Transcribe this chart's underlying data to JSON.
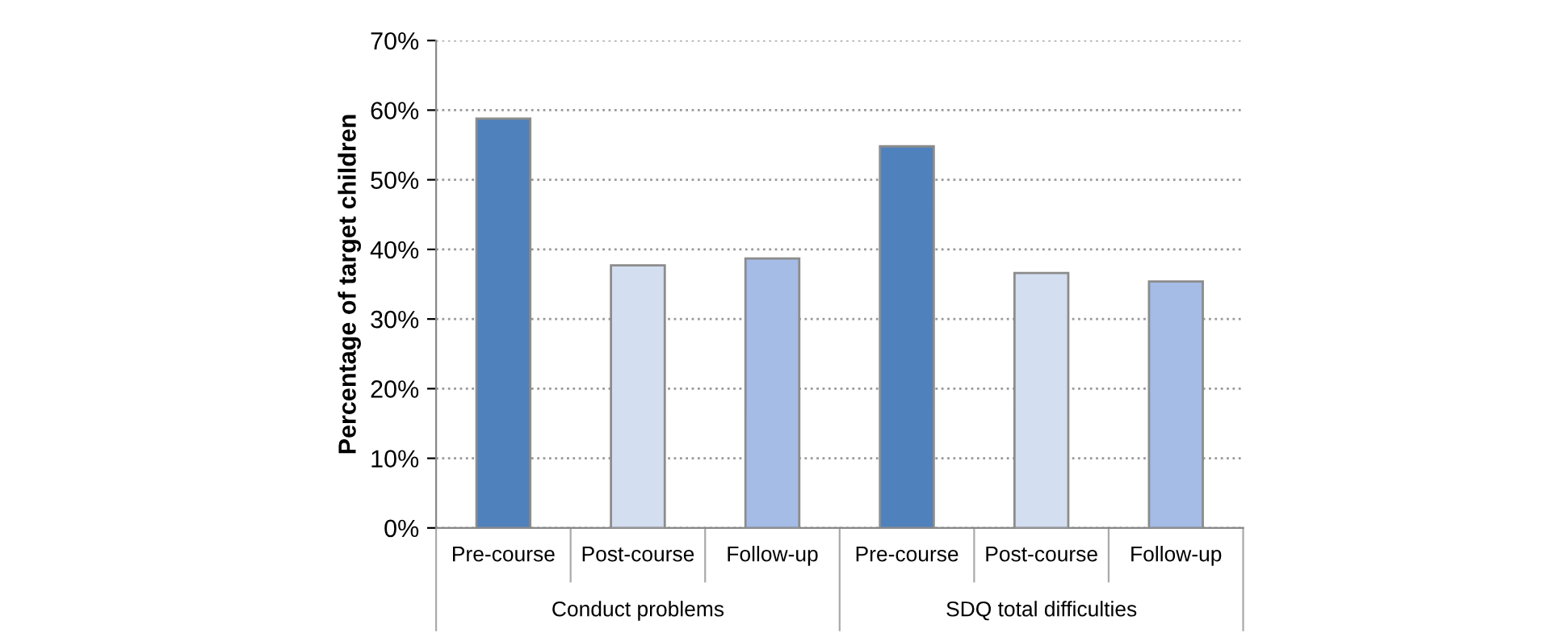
{
  "chart_data": {
    "type": "bar",
    "ylabel": "Percentage of target children",
    "categories": [
      "Pre-course",
      "Post-course",
      "Follow-up",
      "Pre-course",
      "Post-course",
      "Follow-up"
    ],
    "values": [
      58.8,
      37.7,
      38.7,
      54.8,
      36.6,
      35.4
    ],
    "colors": [
      "#4f81bd",
      "#d3def0",
      "#a4bce6",
      "#4f81bd",
      "#d3def0",
      "#a4bce6"
    ],
    "annotations": [
      "Conduct problems",
      "SDQ total difficulties"
    ],
    "ylim": [
      0,
      70
    ],
    "yticks": [
      {
        "value": 0,
        "label": "0%"
      },
      {
        "value": 10,
        "label": "10%"
      },
      {
        "value": 20,
        "label": "20%"
      },
      {
        "value": 30,
        "label": "30%"
      },
      {
        "value": 40,
        "label": "40%"
      },
      {
        "value": 50,
        "label": "50%"
      },
      {
        "value": 60,
        "label": "60%"
      },
      {
        "value": 70,
        "label": "70%"
      }
    ],
    "grid": "y",
    "legend": false
  }
}
